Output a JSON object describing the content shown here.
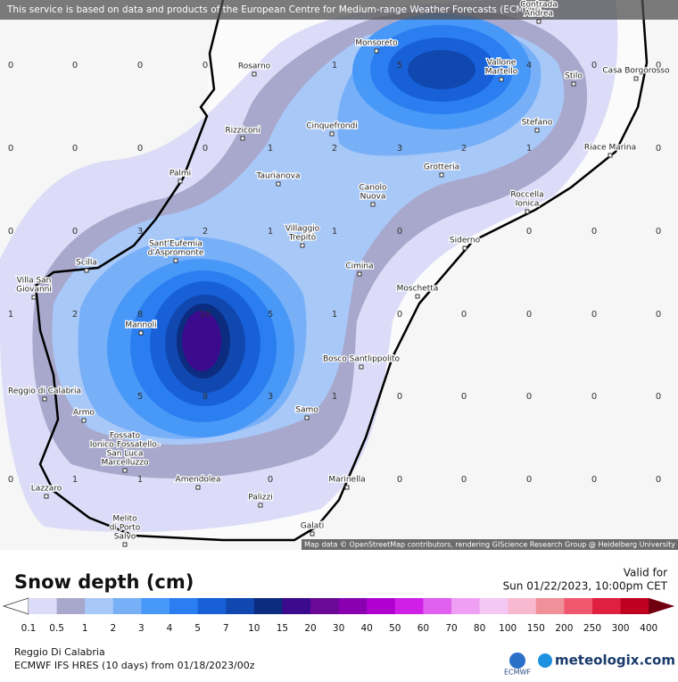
{
  "banner": "This service is based on data and products of the European Centre for Medium-range Weather Forecasts (ECMWF)",
  "attribution": "Map data © OpenStreetMap contributors, rendering GIScience Research Group @ Heidelberg University",
  "places": [
    [
      "Contrada",
      "Andrea"
    ],
    [
      "Monsoreto"
    ],
    [
      "Rosarno"
    ],
    [
      "Vallone",
      "Martello"
    ],
    [
      "Stilo"
    ],
    [
      "Casa Borgorosso"
    ],
    [
      "Rizziconi"
    ],
    [
      "Cinquefrondi"
    ],
    [
      "Stefano"
    ],
    [
      "Riace Marina"
    ],
    [
      "Palmi"
    ],
    [
      "Taurianova"
    ],
    [
      "Grotteria"
    ],
    [
      "Canolo",
      "Nuova"
    ],
    [
      "Roccella",
      "Ionica"
    ],
    [
      "Villaggio",
      "Trepitò"
    ],
    [
      "Sant'Eufemia",
      "d'Aspromonte"
    ],
    [
      "Siderno"
    ],
    [
      "Scilla"
    ],
    [
      "Cimina"
    ],
    [
      "Villa San",
      "Giovanni"
    ],
    [
      "Moschetta"
    ],
    [
      "Mannoli"
    ],
    [
      "Bosco Santlippolito"
    ],
    [
      "Reggio di Calabria"
    ],
    [
      "Samo"
    ],
    [
      "Armo"
    ],
    [
      "Fossato",
      "Ionico-Fossatello-",
      "San Luca",
      "Marcelluzzo"
    ],
    [
      "Amendolea"
    ],
    [
      "Marinella"
    ],
    [
      "Lazzaro"
    ],
    [
      "Palizzi"
    ],
    [
      "Melito",
      "di Porto",
      "Salvo"
    ],
    [
      "Galati"
    ]
  ],
  "grid_values": [
    [
      0,
      0,
      0,
      0,
      null,
      1,
      5,
      null,
      4,
      0,
      0
    ],
    [
      0,
      0,
      0,
      0,
      1,
      2,
      3,
      2,
      1,
      null,
      0
    ],
    [
      0,
      0,
      3,
      2,
      1,
      1,
      0,
      null,
      0,
      0,
      0
    ],
    [
      1,
      2,
      8,
      10,
      5,
      1,
      0,
      0,
      0,
      0,
      0
    ],
    [
      null,
      null,
      5,
      8,
      3,
      1,
      0,
      0,
      0,
      0,
      0
    ],
    [
      0,
      1,
      1,
      null,
      0,
      null,
      0,
      0,
      0,
      0,
      0
    ]
  ],
  "legend": {
    "title": "Snow depth (cm)",
    "labels": [
      "0.1",
      "0.5",
      "1",
      "2",
      "3",
      "4",
      "5",
      "7",
      "10",
      "15",
      "20",
      "30",
      "40",
      "50",
      "60",
      "70",
      "80",
      "100",
      "150",
      "200",
      "250",
      "300",
      "400"
    ],
    "colors": [
      "#dcdcf8",
      "#a8a8cc",
      "#a8c8f8",
      "#78b0f8",
      "#4898f8",
      "#2a7ef0",
      "#1860d8",
      "#1048b0",
      "#0c2c80",
      "#3c0a8c",
      "#6a0898",
      "#8a00b0",
      "#b000d0",
      "#d020e8",
      "#e060f0",
      "#f0a0f4",
      "#f4c8f4",
      "#f8b8d0",
      "#f09098",
      "#f05870",
      "#e02040",
      "#c00020",
      "#9c0018",
      "#700010"
    ]
  },
  "valid_label": "Valid for",
  "valid_time": "Sun 01/22/2023, 10:00pm CET",
  "location": "Reggio Di Calabria",
  "model": "ECMWF IFS HRES (10 days) from 01/18/2023/00z",
  "ecmwf_logo": "ECMWF",
  "brand": "meteologix.com"
}
